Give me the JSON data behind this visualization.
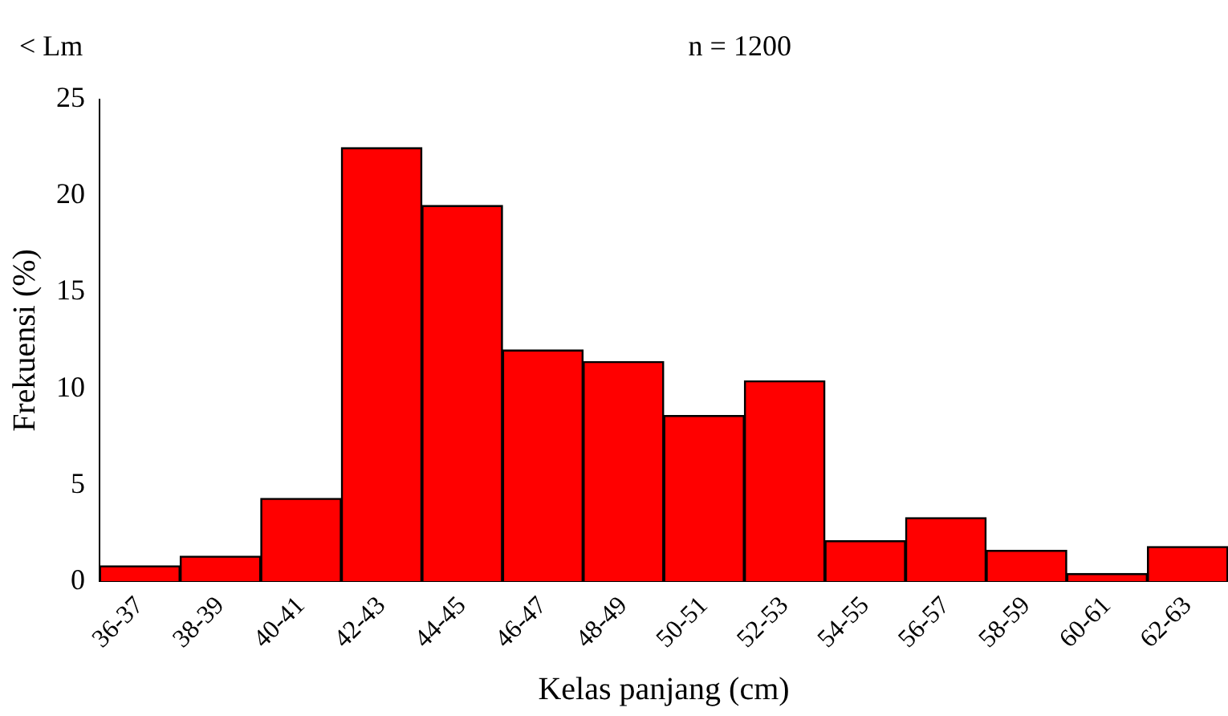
{
  "chart_data": {
    "type": "bar",
    "categories": [
      "36-37",
      "38-39",
      "40-41",
      "42-43",
      "44-45",
      "46-47",
      "48-49",
      "50-51",
      "52-53",
      "54-55",
      "56-57",
      "58-59",
      "60-61",
      "62-63"
    ],
    "values": [
      0.8,
      1.3,
      4.3,
      22.5,
      19.5,
      12.0,
      11.4,
      8.6,
      10.4,
      2.1,
      3.3,
      1.6,
      0.4,
      1.8
    ],
    "color": "#ff0000",
    "xlabel": "Kelas panjang (cm)",
    "ylabel": "Frekuensi (%)",
    "ylim": [
      0,
      25
    ],
    "yticks": [
      0,
      5,
      10,
      15,
      20,
      25
    ],
    "grid": false,
    "legend": false,
    "annotations": [
      "< Lm",
      "n = 1200"
    ]
  }
}
